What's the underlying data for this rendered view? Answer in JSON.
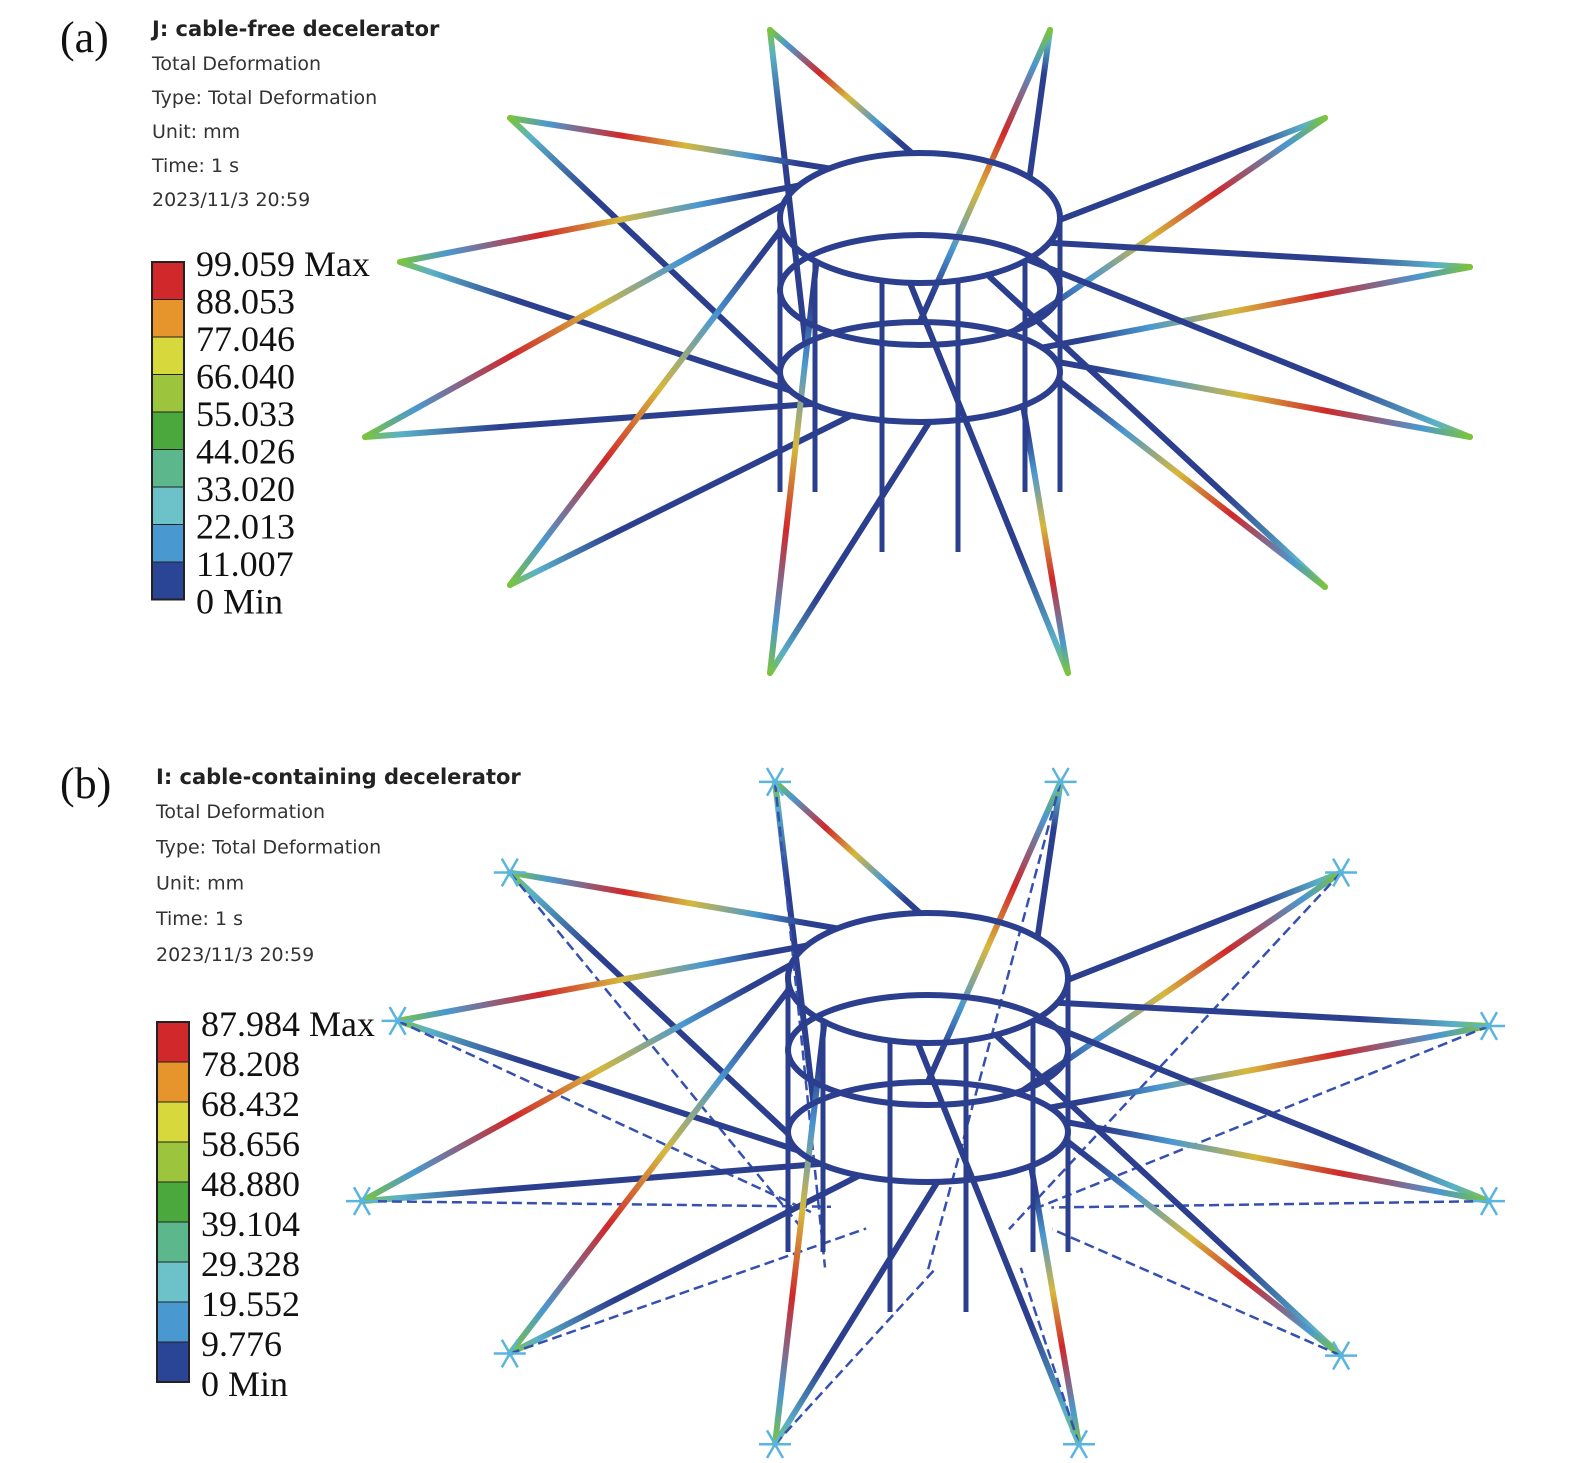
{
  "panels": [
    {
      "label": "(a)",
      "title": "J: cable-free decelerator",
      "info": [
        "Total Deformation",
        "Type: Total Deformation",
        "Unit: mm",
        "Time: 1 s",
        "2023/11/3 20:59"
      ],
      "legend": [
        "99.059 Max",
        "88.053",
        "77.046",
        "66.040",
        "55.033",
        "44.026",
        "33.020",
        "22.013",
        "11.007",
        "0 Min"
      ]
    },
    {
      "label": "(b)",
      "title": "I: cable-containing decelerator",
      "info": [
        "Total Deformation",
        "Type: Total Deformation",
        "Unit: mm",
        "Time: 1 s",
        "2023/11/3 20:59"
      ],
      "legend": [
        "87.984 Max",
        "78.208",
        "68.432",
        "58.656",
        "48.880",
        "39.104",
        "29.328",
        "19.552",
        "9.776",
        "0 Min"
      ]
    }
  ]
}
